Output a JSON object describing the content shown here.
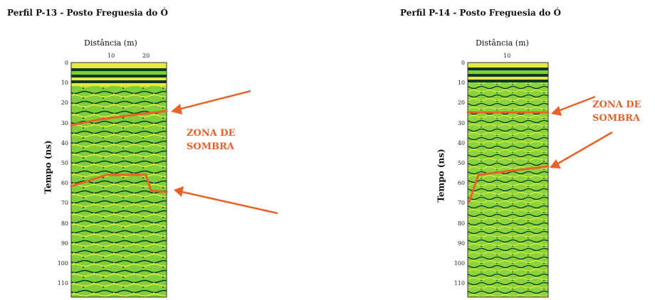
{
  "panels": [
    {
      "title": "Perfil P-13  - Posto Freguesia do Ó",
      "xlabel": "Distância  (m)",
      "xticks": [
        "10",
        "20"
      ],
      "ylabel": "Tempo  (ns)",
      "yticks": [
        "0",
        "10",
        "20",
        "30",
        "40",
        "50",
        "60",
        "70",
        "80",
        "90",
        "100",
        "110"
      ],
      "annotation": [
        "ZONA DE",
        "SOMBRA"
      ]
    },
    {
      "title": "Perfil P-14  - Posto Freguesia do Ó",
      "xlabel": "Distância  (m)",
      "xticks": [
        "10"
      ],
      "ylabel": "Tempo  (ns)",
      "yticks": [
        "0",
        "10",
        "20",
        "30",
        "40",
        "50",
        "60",
        "70",
        "80",
        "90",
        "100",
        "110"
      ],
      "annotation": [
        "ZONA DE",
        "SOMBRA"
      ]
    }
  ],
  "colors": {
    "marker": "#e8622a",
    "radar_fill": "#7ecf3a",
    "radar_dark": "#0d3a24",
    "radar_yellow": "#e6ea3c"
  }
}
